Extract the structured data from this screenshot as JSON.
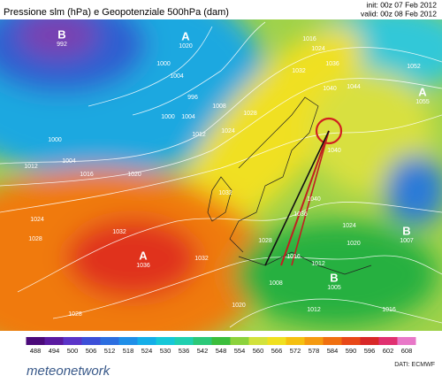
{
  "header": {
    "title": "Pressione slm (hPa) e Geopotenziale 500hPa (dam)",
    "init": "init: 00z 07 Feb 2012",
    "valid": "valid: 00z 08 Feb 2012"
  },
  "map": {
    "centers": [
      {
        "letter": "B",
        "value": "992"
      },
      {
        "letter": "A",
        "value": "1020"
      },
      {
        "letter": "A",
        "value": "1036"
      },
      {
        "letter": "A",
        "value": "1055"
      },
      {
        "letter": "B",
        "value": "1007"
      },
      {
        "letter": "B",
        "value": "1005"
      }
    ],
    "isobar_labels": [
      "1000",
      "1004",
      "996",
      "1000",
      "1004",
      "1008",
      "1012",
      "1012",
      "1004",
      "1000",
      "1016",
      "1020",
      "1024",
      "1028",
      "1032",
      "1028",
      "1028",
      "1024",
      "1032",
      "1036",
      "1040",
      "1044",
      "1052",
      "1024",
      "1016",
      "1040",
      "1040",
      "1036",
      "1032",
      "1028",
      "1024",
      "1020",
      "1016",
      "1012",
      "1008",
      "1012",
      "1016",
      "1020",
      "1032"
    ]
  },
  "legend": {
    "ticks": [
      488,
      494,
      500,
      506,
      512,
      518,
      524,
      530,
      536,
      542,
      548,
      554,
      560,
      566,
      572,
      578,
      584,
      590,
      596,
      602,
      608
    ],
    "colors": [
      "#4b0a7a",
      "#5a1aa0",
      "#5a34c8",
      "#3c4fd8",
      "#2c6ee0",
      "#1f8fe8",
      "#14aee8",
      "#16c8d8",
      "#20d0b0",
      "#2cc878",
      "#3cbe3c",
      "#8cd23c",
      "#d2e23c",
      "#f0e020",
      "#f5c010",
      "#f59a10",
      "#f07010",
      "#e84818",
      "#d82828",
      "#e03070",
      "#e878c8"
    ]
  },
  "footer": {
    "logo": "meteonetwork",
    "source": "DATI: ECMWF"
  }
}
